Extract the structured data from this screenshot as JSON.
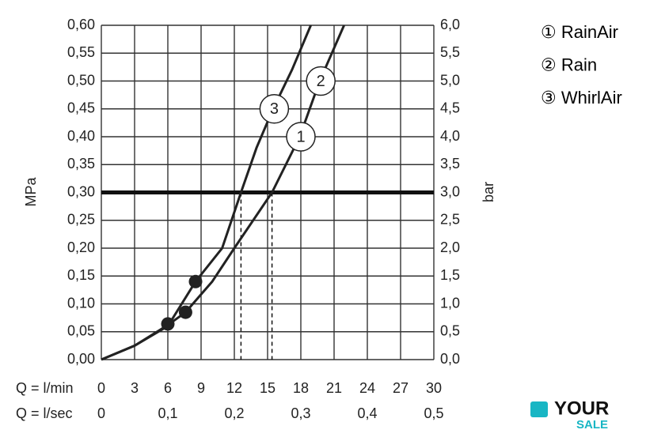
{
  "chart_data": {
    "type": "line",
    "ylabel": "MPa",
    "y2label": "bar",
    "xlabel": "Q = l/min",
    "x2label": "Q = l/sec",
    "xlim": [
      0,
      30
    ],
    "xticks": [
      0,
      3,
      6,
      9,
      12,
      15,
      18,
      21,
      24,
      27,
      30
    ],
    "x2lim": [
      0,
      0.5
    ],
    "x2ticks": [
      0,
      {
        "value": 0.1,
        "label": "0,1"
      },
      {
        "value": 0.2,
        "label": "0,2"
      },
      {
        "value": 0.3,
        "label": "0,3"
      },
      {
        "value": 0.4,
        "label": "0,4"
      },
      {
        "value": 0.5,
        "label": "0,5"
      }
    ],
    "ylim": [
      0,
      0.6
    ],
    "yticks": [
      {
        "value": 0,
        "label": "0,00"
      },
      {
        "value": 0.05,
        "label": "0,05"
      },
      {
        "value": 0.1,
        "label": "0,10"
      },
      {
        "value": 0.15,
        "label": "0,15"
      },
      {
        "value": 0.2,
        "label": "0,20"
      },
      {
        "value": 0.25,
        "label": "0,25"
      },
      {
        "value": 0.3,
        "label": "0,30"
      },
      {
        "value": 0.35,
        "label": "0,35"
      },
      {
        "value": 0.4,
        "label": "0,40"
      },
      {
        "value": 0.45,
        "label": "0,45"
      },
      {
        "value": 0.5,
        "label": "0,50"
      },
      {
        "value": 0.55,
        "label": "0,55"
      },
      {
        "value": 0.6,
        "label": "0,60"
      }
    ],
    "y2lim": [
      0,
      6
    ],
    "y2ticks": [
      {
        "value": 0,
        "label": "0,0"
      },
      {
        "value": 0.5,
        "label": "0,5"
      },
      {
        "value": 1,
        "label": "1,0"
      },
      {
        "value": 1.5,
        "label": "1,5"
      },
      {
        "value": 2,
        "label": "2,0"
      },
      {
        "value": 2.5,
        "label": "2,5"
      },
      {
        "value": 3,
        "label": "3,0"
      },
      {
        "value": 3.5,
        "label": "3,5"
      },
      {
        "value": 4,
        "label": "4,0"
      },
      {
        "value": 4.5,
        "label": "4,5"
      },
      {
        "value": 5,
        "label": "5,0"
      },
      {
        "value": 5.5,
        "label": "5,5"
      },
      {
        "value": 6,
        "label": "6,0"
      }
    ],
    "grid": true,
    "series": [
      {
        "x": [
          0,
          3,
          6,
          8.5,
          10.9,
          12.6,
          14,
          15.5,
          17.2,
          18.9
        ],
        "values": [
          0,
          0.025,
          0.06,
          0.14,
          0.2,
          0.3,
          0.38,
          0.45,
          0.52,
          0.6
        ]
      },
      {
        "x": [
          0,
          3,
          6,
          7.6,
          10,
          12,
          15.4,
          17.9,
          19.7,
          21.9
        ],
        "values": [
          0,
          0.025,
          0.062,
          0.085,
          0.14,
          0.2,
          0.3,
          0.4,
          0.5,
          0.6
        ]
      }
    ],
    "points": {
      "x": [
        6,
        7.6,
        8.5
      ],
      "values": [
        0.064,
        0.085,
        0.14
      ]
    },
    "hline": 0.3,
    "dashed_x": [
      12.6,
      15.4
    ],
    "curve_labels": [
      {
        "text": "3",
        "x": 15.6,
        "y": 0.45
      },
      {
        "text": "1",
        "x": 18,
        "y": 0.4
      },
      {
        "text": "2",
        "x": 19.8,
        "y": 0.5
      }
    ],
    "legend": [
      "① RainAir",
      "② Rain",
      "③ WhirlAir"
    ]
  },
  "logo": [
    "YOUR",
    "SALE"
  ]
}
